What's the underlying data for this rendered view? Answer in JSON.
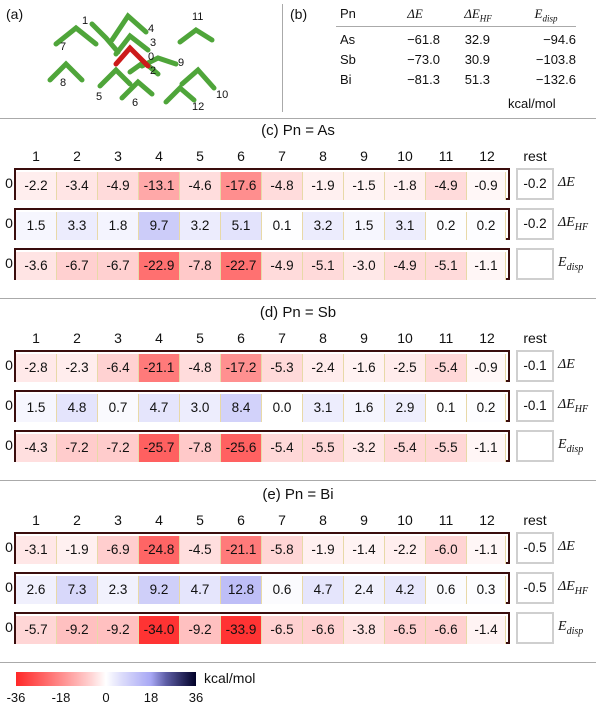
{
  "panel_a": {
    "label": "(a)",
    "numbers": [
      "1",
      "2",
      "3",
      "4",
      "5",
      "6",
      "7",
      "8",
      "9",
      "10",
      "11",
      "12",
      "0"
    ]
  },
  "panel_b": {
    "label": "(b)",
    "headers": [
      "Pn",
      "ΔE",
      "ΔE",
      "HF",
      "E",
      "disp"
    ],
    "rows": [
      {
        "pn": "As",
        "de": "−61.8",
        "dehf": "32.9",
        "edisp": "−94.6"
      },
      {
        "pn": "Sb",
        "de": "−73.0",
        "dehf": "30.9",
        "edisp": "−103.8"
      },
      {
        "pn": "Bi",
        "de": "−81.3",
        "dehf": "51.3",
        "edisp": "−132.6"
      }
    ],
    "unit": "kcal/mol"
  },
  "columns": [
    "1",
    "2",
    "3",
    "4",
    "5",
    "6",
    "7",
    "8",
    "9",
    "10",
    "11",
    "12"
  ],
  "rest_label": "rest",
  "row_zero": "0",
  "row_names": [
    {
      "main": "ΔE",
      "sub": ""
    },
    {
      "main": "ΔE",
      "sub": "HF"
    },
    {
      "main": "E",
      "sub": "disp"
    }
  ],
  "sections": [
    {
      "title": "(c) Pn = As",
      "rows": [
        {
          "values": [
            "-2.2",
            "-3.4",
            "-4.9",
            "-13.1",
            "-4.6",
            "-17.6",
            "-4.8",
            "-1.9",
            "-1.5",
            "-1.8",
            "-4.9",
            "-0.9"
          ],
          "rest": "-0.2"
        },
        {
          "values": [
            "1.5",
            "3.3",
            "1.8",
            "9.7",
            "3.2",
            "5.1",
            "0.1",
            "3.2",
            "1.5",
            "3.1",
            "0.2",
            "0.2"
          ],
          "rest": "-0.2"
        },
        {
          "values": [
            "-3.6",
            "-6.7",
            "-6.7",
            "-22.9",
            "-7.8",
            "-22.7",
            "-4.9",
            "-5.1",
            "-3.0",
            "-4.9",
            "-5.1",
            "-1.1"
          ],
          "rest": ""
        }
      ]
    },
    {
      "title": "(d) Pn = Sb",
      "rows": [
        {
          "values": [
            "-2.8",
            "-2.3",
            "-6.4",
            "-21.1",
            "-4.8",
            "-17.2",
            "-5.3",
            "-2.4",
            "-1.6",
            "-2.5",
            "-5.4",
            "-0.9"
          ],
          "rest": "-0.1"
        },
        {
          "values": [
            "1.5",
            "4.8",
            "0.7",
            "4.7",
            "3.0",
            "8.4",
            "0.0",
            "3.1",
            "1.6",
            "2.9",
            "0.1",
            "0.2"
          ],
          "rest": "-0.1"
        },
        {
          "values": [
            "-4.3",
            "-7.2",
            "-7.2",
            "-25.7",
            "-7.8",
            "-25.6",
            "-5.4",
            "-5.5",
            "-3.2",
            "-5.4",
            "-5.5",
            "-1.1"
          ],
          "rest": ""
        }
      ]
    },
    {
      "title": "(e) Pn = Bi",
      "rows": [
        {
          "values": [
            "-3.1",
            "-1.9",
            "-6.9",
            "-24.8",
            "-4.5",
            "-21.1",
            "-5.8",
            "-1.9",
            "-1.4",
            "-2.2",
            "-6.0",
            "-1.1"
          ],
          "rest": "-0.5"
        },
        {
          "values": [
            "2.6",
            "7.3",
            "2.3",
            "9.2",
            "4.7",
            "12.8",
            "0.6",
            "4.7",
            "2.4",
            "4.2",
            "0.6",
            "0.3"
          ],
          "rest": "-0.5"
        },
        {
          "values": [
            "-5.7",
            "-9.2",
            "-9.2",
            "-34.0",
            "-9.2",
            "-33.9",
            "-6.5",
            "-6.6",
            "-3.8",
            "-6.5",
            "-6.6",
            "-1.4"
          ],
          "rest": ""
        }
      ]
    }
  ],
  "colorbar": {
    "ticks": [
      "-36",
      "-18",
      "0",
      "18",
      "36"
    ],
    "unit": "kcal/mol",
    "min": -36,
    "max": 36,
    "colors": {
      "neg": "#ff0000",
      "zero": "#ffffff",
      "pos": "#4444ee",
      "max": "#000033"
    }
  }
}
